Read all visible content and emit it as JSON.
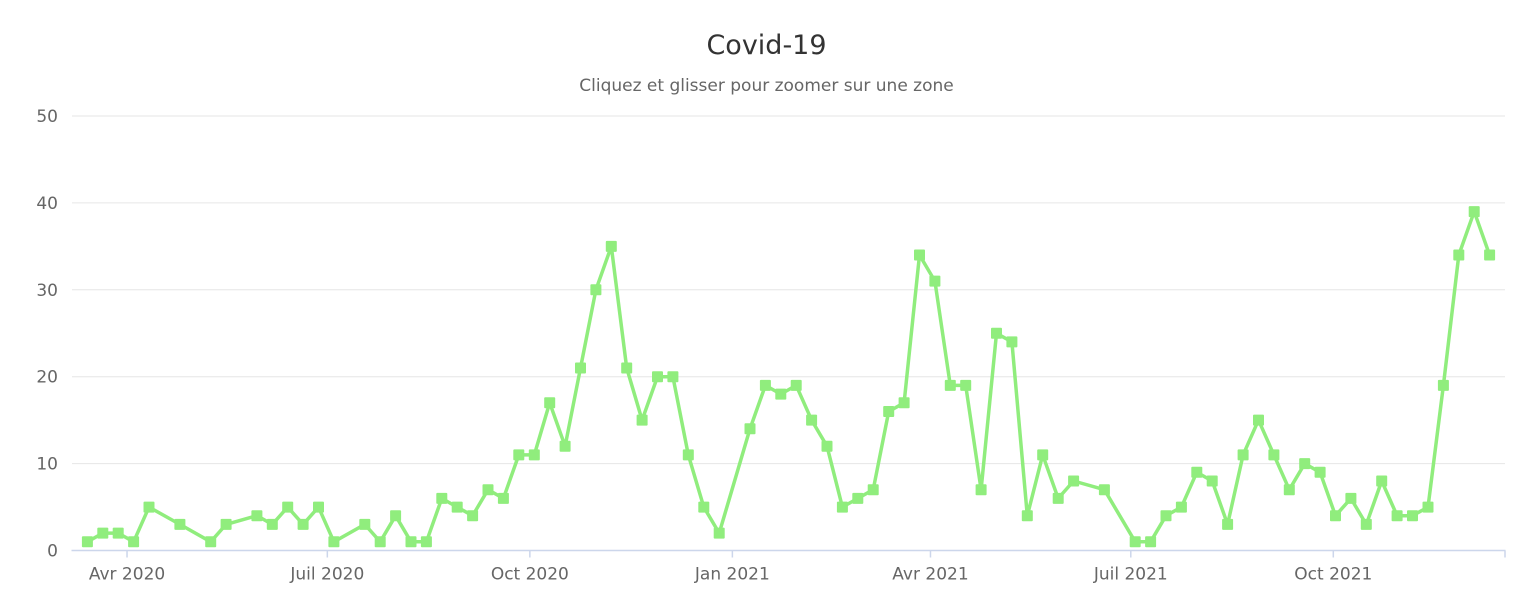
{
  "chart_data": {
    "type": "line",
    "title": "Covid-19",
    "subtitle": "Cliquez et glisser pour zoomer sur une zone",
    "legend": false,
    "grid": true,
    "x_axis": {
      "type": "datetime",
      "min": "2020-03-07",
      "max": "2021-12-18",
      "tick_dates": [
        "2020-04-01",
        "2020-07-01",
        "2020-10-01",
        "2021-01-01",
        "2021-04-01",
        "2021-07-01",
        "2021-10-01"
      ],
      "tick_labels": [
        "Avr 2020",
        "Juil 2020",
        "Oct 2020",
        "Jan 2021",
        "Avr 2021",
        "Juil 2021",
        "Oct 2021"
      ]
    },
    "y_axis": {
      "min": 0,
      "max": 50,
      "ticks": [
        0,
        10,
        20,
        30,
        40,
        50
      ]
    },
    "colors": {
      "line": "#90ed7d",
      "grid": "#e6e6e6",
      "axis_line": "#ccd6eb",
      "label": "#666666",
      "title": "#333333"
    },
    "series": [
      {
        "name": "Covid-19",
        "color": "#90ed7d",
        "marker": "square",
        "points": [
          [
            "2020-03-14",
            1
          ],
          [
            "2020-03-21",
            2
          ],
          [
            "2020-03-28",
            2
          ],
          [
            "2020-04-04",
            1
          ],
          [
            "2020-04-11",
            5
          ],
          [
            "2020-04-25",
            3
          ],
          [
            "2020-05-09",
            1
          ],
          [
            "2020-05-16",
            3
          ],
          [
            "2020-05-30",
            4
          ],
          [
            "2020-06-06",
            3
          ],
          [
            "2020-06-13",
            5
          ],
          [
            "2020-06-20",
            3
          ],
          [
            "2020-06-27",
            5
          ],
          [
            "2020-07-04",
            1
          ],
          [
            "2020-07-18",
            3
          ],
          [
            "2020-07-25",
            1
          ],
          [
            "2020-08-01",
            4
          ],
          [
            "2020-08-08",
            1
          ],
          [
            "2020-08-15",
            1
          ],
          [
            "2020-08-22",
            6
          ],
          [
            "2020-08-29",
            5
          ],
          [
            "2020-09-05",
            4
          ],
          [
            "2020-09-12",
            7
          ],
          [
            "2020-09-19",
            6
          ],
          [
            "2020-09-26",
            11
          ],
          [
            "2020-10-03",
            11
          ],
          [
            "2020-10-10",
            17
          ],
          [
            "2020-10-17",
            12
          ],
          [
            "2020-10-24",
            21
          ],
          [
            "2020-10-31",
            30
          ],
          [
            "2020-11-07",
            35
          ],
          [
            "2020-11-14",
            21
          ],
          [
            "2020-11-21",
            15
          ],
          [
            "2020-11-28",
            20
          ],
          [
            "2020-12-05",
            20
          ],
          [
            "2020-12-12",
            11
          ],
          [
            "2020-12-19",
            5
          ],
          [
            "2020-12-26",
            2
          ],
          [
            "2021-01-09",
            14
          ],
          [
            "2021-01-16",
            19
          ],
          [
            "2021-01-23",
            18
          ],
          [
            "2021-01-30",
            19
          ],
          [
            "2021-02-06",
            15
          ],
          [
            "2021-02-13",
            12
          ],
          [
            "2021-02-20",
            5
          ],
          [
            "2021-02-27",
            6
          ],
          [
            "2021-03-06",
            7
          ],
          [
            "2021-03-13",
            16
          ],
          [
            "2021-03-20",
            17
          ],
          [
            "2021-03-27",
            34
          ],
          [
            "2021-04-03",
            31
          ],
          [
            "2021-04-10",
            19
          ],
          [
            "2021-04-17",
            19
          ],
          [
            "2021-04-24",
            7
          ],
          [
            "2021-05-01",
            25
          ],
          [
            "2021-05-08",
            24
          ],
          [
            "2021-05-15",
            4
          ],
          [
            "2021-05-22",
            11
          ],
          [
            "2021-05-29",
            6
          ],
          [
            "2021-06-05",
            8
          ],
          [
            "2021-06-19",
            7
          ],
          [
            "2021-07-03",
            1
          ],
          [
            "2021-07-10",
            1
          ],
          [
            "2021-07-17",
            4
          ],
          [
            "2021-07-24",
            5
          ],
          [
            "2021-07-31",
            9
          ],
          [
            "2021-08-07",
            8
          ],
          [
            "2021-08-14",
            3
          ],
          [
            "2021-08-21",
            11
          ],
          [
            "2021-08-28",
            15
          ],
          [
            "2021-09-04",
            11
          ],
          [
            "2021-09-11",
            7
          ],
          [
            "2021-09-18",
            10
          ],
          [
            "2021-09-25",
            9
          ],
          [
            "2021-10-02",
            4
          ],
          [
            "2021-10-09",
            6
          ],
          [
            "2021-10-16",
            3
          ],
          [
            "2021-10-23",
            8
          ],
          [
            "2021-10-30",
            4
          ],
          [
            "2021-11-06",
            4
          ],
          [
            "2021-11-13",
            5
          ],
          [
            "2021-11-20",
            19
          ],
          [
            "2021-11-27",
            34
          ],
          [
            "2021-12-04",
            39
          ],
          [
            "2021-12-11",
            34
          ]
        ]
      }
    ]
  }
}
